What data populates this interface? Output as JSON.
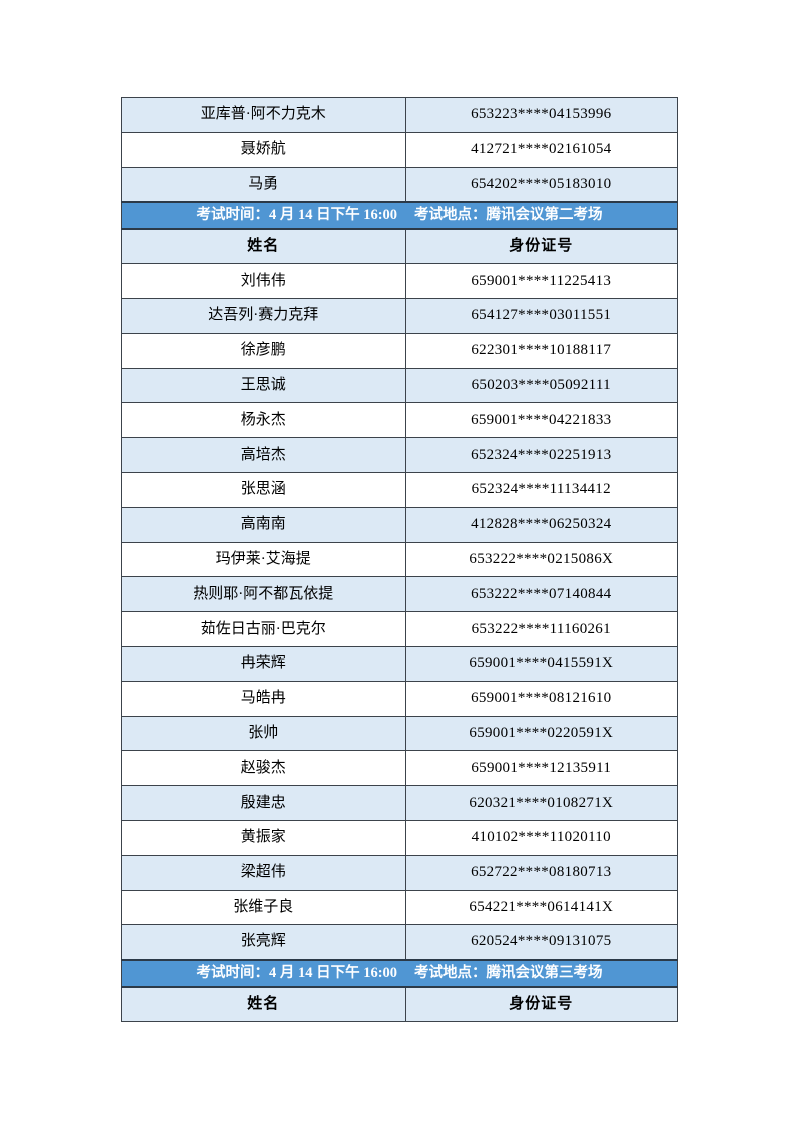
{
  "document": {
    "type": "exam-roster-page",
    "colors": {
      "page_background": "#ffffff",
      "stripe_row_background": "#dce9f5",
      "plain_row_background": "#ffffff",
      "session_band_background": "#5096d3",
      "session_band_text": "#fdfeff",
      "table_border": "#3c434b",
      "cell_text": "#000000"
    }
  },
  "table": {
    "column_headers": {
      "name": "姓名",
      "id": "身份证号"
    },
    "rows": [
      {
        "type": "data",
        "shade": true,
        "name": "亚库普·阿不力克木",
        "id": "653223****04153996"
      },
      {
        "type": "data",
        "shade": false,
        "name": "聂娇航",
        "id": "412721****02161054"
      },
      {
        "type": "data",
        "shade": true,
        "name": "马勇",
        "id": "654202****05183010"
      },
      {
        "type": "band",
        "time": "考试时间：4 月 14 日下午 16:00",
        "location": "考试地点：腾讯会议第二考场"
      },
      {
        "type": "header"
      },
      {
        "type": "data",
        "shade": false,
        "name": "刘伟伟",
        "id": "659001****11225413"
      },
      {
        "type": "data",
        "shade": true,
        "name": "达吾列·赛力克拜",
        "id": "654127****03011551"
      },
      {
        "type": "data",
        "shade": false,
        "name": "徐彦鹏",
        "id": "622301****10188117"
      },
      {
        "type": "data",
        "shade": true,
        "name": "王思诚",
        "id": "650203****05092111"
      },
      {
        "type": "data",
        "shade": false,
        "name": "杨永杰",
        "id": "659001****04221833"
      },
      {
        "type": "data",
        "shade": true,
        "name": "高培杰",
        "id": "652324****02251913"
      },
      {
        "type": "data",
        "shade": false,
        "name": "张思涵",
        "id": "652324****11134412"
      },
      {
        "type": "data",
        "shade": true,
        "name": "高南南",
        "id": "412828****06250324"
      },
      {
        "type": "data",
        "shade": false,
        "name": "玛伊莱·艾海提",
        "id": "653222****0215086X"
      },
      {
        "type": "data",
        "shade": true,
        "name": "热则耶·阿不都瓦依提",
        "id": "653222****07140844"
      },
      {
        "type": "data",
        "shade": false,
        "name": "茹佐日古丽·巴克尔",
        "id": "653222****11160261"
      },
      {
        "type": "data",
        "shade": true,
        "name": "冉荣辉",
        "id": "659001****0415591X"
      },
      {
        "type": "data",
        "shade": false,
        "name": "马皓冉",
        "id": "659001****08121610"
      },
      {
        "type": "data",
        "shade": true,
        "name": "张帅",
        "id": "659001****0220591X"
      },
      {
        "type": "data",
        "shade": false,
        "name": "赵骏杰",
        "id": "659001****12135911"
      },
      {
        "type": "data",
        "shade": true,
        "name": "殷建忠",
        "id": "620321****0108271X"
      },
      {
        "type": "data",
        "shade": false,
        "name": "黄振家",
        "id": "410102****11020110"
      },
      {
        "type": "data",
        "shade": true,
        "name": "梁超伟",
        "id": "652722****08180713"
      },
      {
        "type": "data",
        "shade": false,
        "name": "张维子良",
        "id": "654221****0614141X"
      },
      {
        "type": "data",
        "shade": true,
        "name": "张亮辉",
        "id": "620524****09131075"
      },
      {
        "type": "band",
        "time": "考试时间：4 月 14 日下午 16:00",
        "location": "考试地点：腾讯会议第三考场"
      },
      {
        "type": "header"
      }
    ]
  }
}
